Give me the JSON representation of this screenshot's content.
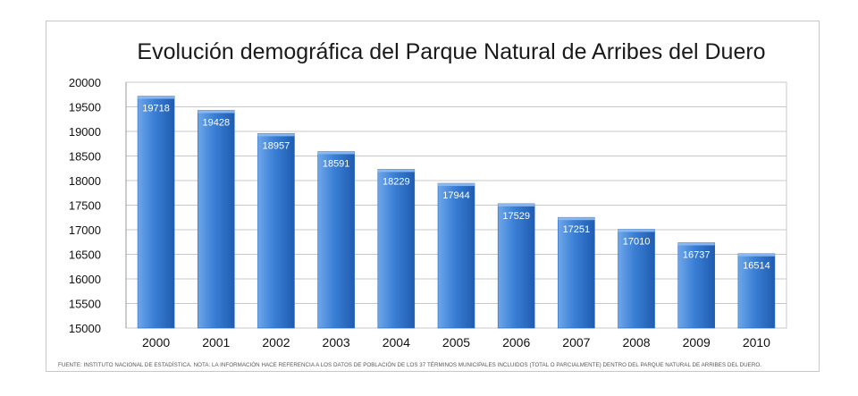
{
  "chart_data": {
    "type": "bar",
    "title": "Evolución demográfica del Parque Natural de Arribes del Duero",
    "xlabel": "",
    "ylabel": "",
    "categories": [
      "2000",
      "2001",
      "2002",
      "2003",
      "2004",
      "2005",
      "2006",
      "2007",
      "2008",
      "2009",
      "2010"
    ],
    "values": [
      19718,
      19428,
      18957,
      18591,
      18229,
      17944,
      17529,
      17251,
      17010,
      16737,
      16514
    ],
    "ylim": [
      15000,
      20000
    ],
    "yticks": [
      15000,
      15500,
      16000,
      16500,
      17000,
      17500,
      18000,
      18500,
      19000,
      19500,
      20000
    ],
    "grid": true,
    "legend": "none",
    "bar_color": "#3a7fd5",
    "bar_color_light": "#6ea6ea",
    "bar_color_dark": "#1f5cb0",
    "footer": "FUENTE: INSTITUTO NACIONAL DE ESTADÍSTICA.   NOTA: LA INFORMACIÓN HACE REFERENCIA A LOS DATOS DE POBLACIÓN DE LOS 37 TÉRMINOS MUNICIPALES INCLUIDOS (TOTAL O PARCIALMENTE) DENTRO DEL PARQUE NATURAL DE ARRIBES DEL DUERO."
  }
}
